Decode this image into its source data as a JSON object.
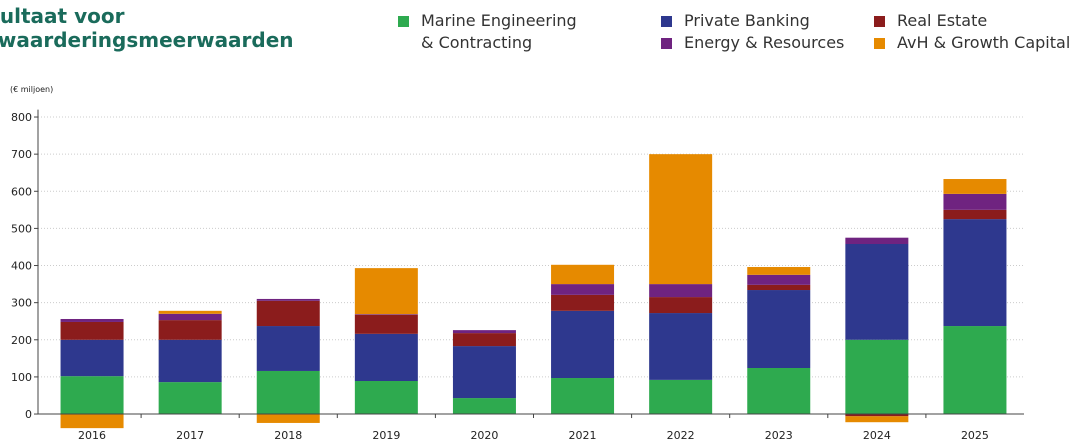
{
  "chart_data": {
    "type": "stacked_bar",
    "title": [
      "sultaat voor",
      "rwaarderingsmeerwaarden"
    ],
    "y_axis_label": "(€ miljoen)",
    "categories": [
      "2016",
      "2017",
      "2018",
      "2019",
      "2020",
      "2021",
      "2022",
      "2023",
      "2024",
      "2025"
    ],
    "series": [
      {
        "name": "Marine Engineering & Contracting",
        "color": "#2eaa4f",
        "values": [
          102,
          86,
          116,
          89,
          43,
          97,
          92,
          124,
          200,
          237
        ]
      },
      {
        "name": "Private Banking",
        "color": "#2e388e",
        "values": [
          98,
          114,
          121,
          127,
          140,
          181,
          180,
          210,
          258,
          288
        ]
      },
      {
        "name": "Real Estate",
        "color": "#8b1c1c",
        "values": [
          48,
          53,
          68,
          51,
          35,
          43,
          43,
          14,
          -6,
          25
        ]
      },
      {
        "name": "Energy & Resources",
        "color": "#6f2380",
        "values": [
          8,
          17,
          5,
          2,
          8,
          29,
          35,
          27,
          17,
          43
        ]
      },
      {
        "name": "AvH & Growth Capital",
        "color": "#e68a00",
        "values": [
          -38,
          8,
          -24,
          124,
          0,
          52,
          350,
          21,
          -16,
          40
        ]
      }
    ],
    "ylim": [
      -50,
      820
    ],
    "yticks": [
      0,
      100,
      200,
      300,
      400,
      500,
      600,
      700,
      800
    ],
    "grid": true
  }
}
